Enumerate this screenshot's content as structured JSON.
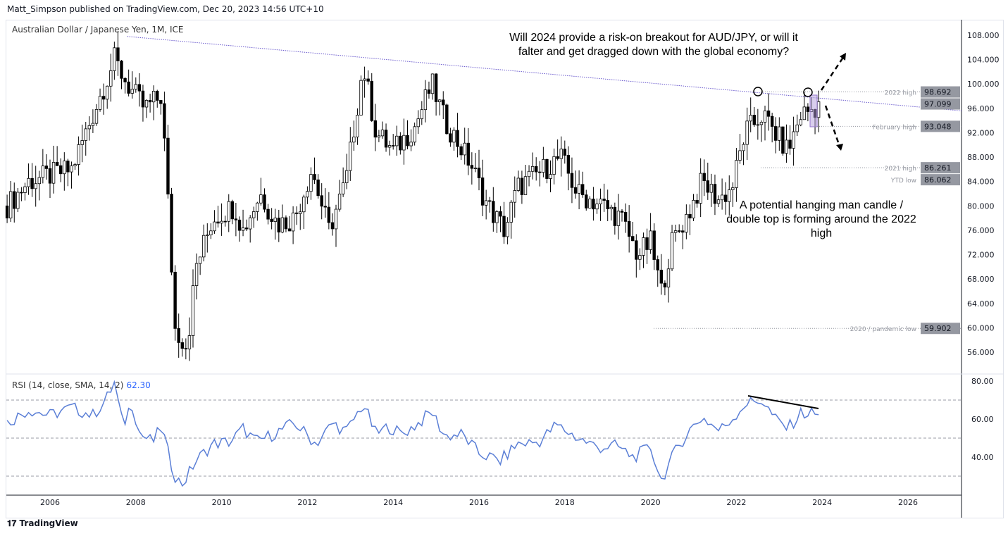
{
  "header": {
    "published": "Matt_Simpson published on TradingView.com, Dec 20, 2023 14:56 UTC+10",
    "symbol": "Australian Dollar / Japanese Yen, 1M, ICE"
  },
  "annotations": {
    "top": "Will 2024 provide a risk-on breakout for AUD/JPY, or will it falter and get dragged down with the global economy?",
    "bottom": "A potential hanging man candle / double top is forming around the 2022 high"
  },
  "rsi": {
    "label": "RSI (14, close, SMA, 14, 2)",
    "value": "62.30"
  },
  "logo": "TradingView",
  "colors": {
    "rsi": "#5b7fd6",
    "trend": "#6a5acd",
    "label_bg": "#9598a1"
  },
  "chart_data": {
    "type": "candlestick",
    "title": "Australian Dollar / Japanese Yen, 1M, ICE",
    "ylim": [
      54,
      110
    ],
    "yticks": [
      108,
      104,
      100,
      96,
      92,
      88,
      84,
      80,
      76,
      72,
      68,
      64,
      60,
      56
    ],
    "xticks": [
      2006,
      2008,
      2010,
      2012,
      2014,
      2016,
      2018,
      2020,
      2022,
      2024,
      2026
    ],
    "price_labels": [
      {
        "name": "2022 high",
        "value": 98.692
      },
      {
        "name": "",
        "value": 97.099
      },
      {
        "name": "February high",
        "value": 93.048
      },
      {
        "name": "2021 high",
        "value": 86.261
      },
      {
        "name": "YTD low",
        "value": 86.062
      },
      {
        "name": "2020 / pandemic low",
        "value": 59.902
      }
    ],
    "close_keypoints": [
      [
        2005.0,
        80
      ],
      [
        2005.5,
        84
      ],
      [
        2006.0,
        85
      ],
      [
        2006.5,
        86
      ],
      [
        2007.0,
        95
      ],
      [
        2007.5,
        104
      ],
      [
        2007.8,
        100
      ],
      [
        2008.2,
        96
      ],
      [
        2008.6,
        98
      ],
      [
        2008.8,
        75
      ],
      [
        2008.9,
        60
      ],
      [
        2009.2,
        57
      ],
      [
        2009.4,
        70
      ],
      [
        2009.8,
        78
      ],
      [
        2010.3,
        80
      ],
      [
        2010.5,
        76
      ],
      [
        2010.9,
        82
      ],
      [
        2011.3,
        77
      ],
      [
        2011.7,
        78
      ],
      [
        2012.1,
        86
      ],
      [
        2012.5,
        76
      ],
      [
        2012.9,
        84
      ],
      [
        2013.3,
        103
      ],
      [
        2013.6,
        92
      ],
      [
        2014.0,
        89
      ],
      [
        2014.5,
        93
      ],
      [
        2014.9,
        100
      ],
      [
        2015.2,
        94
      ],
      [
        2015.8,
        87
      ],
      [
        2016.2,
        80
      ],
      [
        2016.6,
        76
      ],
      [
        2016.9,
        83
      ],
      [
        2017.5,
        86
      ],
      [
        2017.9,
        88
      ],
      [
        2018.3,
        82
      ],
      [
        2018.9,
        80
      ],
      [
        2019.3,
        78
      ],
      [
        2019.7,
        72
      ],
      [
        2020.0,
        74
      ],
      [
        2020.25,
        66
      ],
      [
        2020.5,
        74
      ],
      [
        2020.9,
        79
      ],
      [
        2021.2,
        84
      ],
      [
        2021.6,
        81
      ],
      [
        2021.9,
        83
      ],
      [
        2022.2,
        92
      ],
      [
        2022.6,
        95
      ],
      [
        2022.9,
        92
      ],
      [
        2023.2,
        89
      ],
      [
        2023.5,
        95
      ],
      [
        2023.8,
        96
      ],
      [
        2023.97,
        97.1
      ]
    ],
    "rsi_ylim": [
      25,
      82
    ],
    "rsi_levels": [
      70,
      50,
      30
    ],
    "rsi_yticks": [
      80,
      60,
      40
    ],
    "rsi_keypoints": [
      [
        2005.0,
        58
      ],
      [
        2005.5,
        65
      ],
      [
        2006.0,
        62
      ],
      [
        2006.5,
        66
      ],
      [
        2007.0,
        62
      ],
      [
        2007.3,
        70
      ],
      [
        2007.5,
        79
      ],
      [
        2007.7,
        56
      ],
      [
        2007.9,
        69
      ],
      [
        2008.1,
        52
      ],
      [
        2008.4,
        48
      ],
      [
        2008.6,
        56
      ],
      [
        2008.8,
        38
      ],
      [
        2008.95,
        28
      ],
      [
        2009.1,
        26
      ],
      [
        2009.4,
        38
      ],
      [
        2009.8,
        47
      ],
      [
        2010.2,
        48
      ],
      [
        2010.5,
        55
      ],
      [
        2010.8,
        48
      ],
      [
        2011.2,
        52
      ],
      [
        2011.7,
        58
      ],
      [
        2012.2,
        47
      ],
      [
        2012.6,
        58
      ],
      [
        2012.9,
        53
      ],
      [
        2013.3,
        68
      ],
      [
        2013.6,
        52
      ],
      [
        2013.9,
        56
      ],
      [
        2014.2,
        52
      ],
      [
        2014.6,
        58
      ],
      [
        2014.9,
        64
      ],
      [
        2015.2,
        51
      ],
      [
        2015.6,
        52
      ],
      [
        2016.0,
        42
      ],
      [
        2016.5,
        38
      ],
      [
        2016.9,
        47
      ],
      [
        2017.4,
        48
      ],
      [
        2017.8,
        57
      ],
      [
        2018.3,
        50
      ],
      [
        2018.8,
        45
      ],
      [
        2019.2,
        46
      ],
      [
        2019.6,
        40
      ],
      [
        2020.0,
        45
      ],
      [
        2020.25,
        28
      ],
      [
        2020.6,
        44
      ],
      [
        2020.9,
        54
      ],
      [
        2021.2,
        61
      ],
      [
        2021.6,
        54
      ],
      [
        2021.9,
        60
      ],
      [
        2022.2,
        68
      ],
      [
        2022.6,
        70
      ],
      [
        2022.9,
        60
      ],
      [
        2023.2,
        55
      ],
      [
        2023.5,
        63
      ],
      [
        2023.8,
        63
      ],
      [
        2023.97,
        62.3
      ]
    ]
  }
}
